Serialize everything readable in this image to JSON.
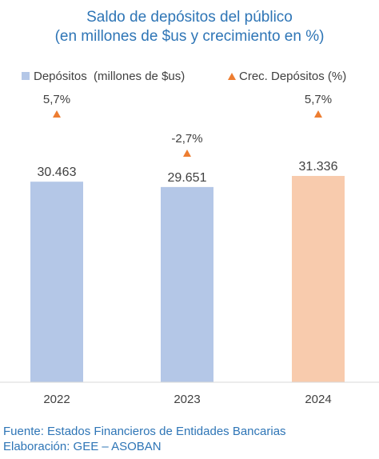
{
  "chart_data": {
    "type": "bar",
    "title_lines": [
      "Saldo de depósitos del público",
      "(en millones de $us y crecimiento en %)"
    ],
    "categories": [
      "2022",
      "2023",
      "2024"
    ],
    "series": [
      {
        "name": "Depósitos  (millones de $us)",
        "type": "bar",
        "values": [
          30463,
          29651,
          31336
        ],
        "labels": [
          "30.463",
          "29.651",
          "31.336"
        ],
        "colors": [
          "#b4c7e7",
          "#b4c7e7",
          "#f8cbad"
        ]
      },
      {
        "name": "Crec. Depósitos (%)",
        "type": "marker",
        "marker": "triangle",
        "color": "#ed7d31",
        "values": [
          5.7,
          -2.7,
          5.7
        ],
        "labels": [
          "5,7%",
          "-2,7%",
          "5,7%"
        ]
      }
    ],
    "legend_position": "top",
    "grid": false
  },
  "source_lines": [
    "Fuente: Estados Financieros de Entidades Bancarias",
    "Elaboración: GEE – ASOBAN"
  ]
}
